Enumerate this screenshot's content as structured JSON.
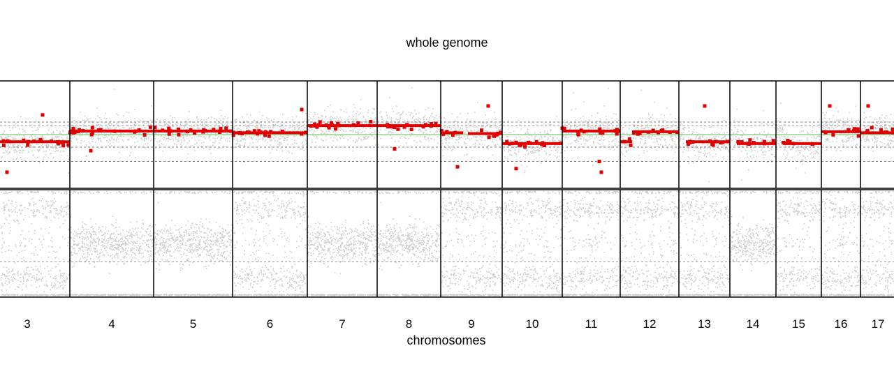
{
  "chart_data": {
    "type": "scatter",
    "title": "whole genome",
    "xlabel": "chromosomes",
    "ylabel": "",
    "chromosomes": [
      {
        "label": "3",
        "start": 0,
        "end": 100
      },
      {
        "label": "4",
        "start": 100,
        "end": 220
      },
      {
        "label": "5",
        "start": 220,
        "end": 333
      },
      {
        "label": "6",
        "start": 333,
        "end": 440
      },
      {
        "label": "7",
        "start": 440,
        "end": 540
      },
      {
        "label": "8",
        "start": 540,
        "end": 631
      },
      {
        "label": "9",
        "start": 631,
        "end": 719
      },
      {
        "label": "10",
        "start": 719,
        "end": 805
      },
      {
        "label": "11",
        "start": 805,
        "end": 888
      },
      {
        "label": "12",
        "start": 888,
        "end": 972
      },
      {
        "label": "13",
        "start": 972,
        "end": 1045
      },
      {
        "label": "14",
        "start": 1045,
        "end": 1111
      },
      {
        "label": "15",
        "start": 1111,
        "end": 1176
      },
      {
        "label": "16",
        "start": 1176,
        "end": 1232
      },
      {
        "label": "17",
        "start": 1232,
        "end": 1280
      }
    ],
    "x_range": [
      0,
      1280
    ],
    "top_panel": {
      "ylim": [
        -1.5,
        1.5
      ],
      "reference_line": 0.0,
      "reference_color": "#8fd88f",
      "dashed_lines": [
        0.35,
        0.25,
        -0.35,
        -0.75
      ],
      "points_color": "#cccccc",
      "segments_color": "#e00000",
      "segments": [
        {
          "x": [
            0,
            100
          ],
          "y": -0.2
        },
        {
          "x": [
            100,
            220
          ],
          "y": 0.1
        },
        {
          "x": [
            220,
            333
          ],
          "y": 0.1
        },
        {
          "x": [
            333,
            440
          ],
          "y": 0.05
        },
        {
          "x": [
            440,
            540
          ],
          "y": 0.25
        },
        {
          "x": [
            540,
            631
          ],
          "y": 0.25
        },
        {
          "x": [
            631,
            663
          ],
          "y": 0.05
        },
        {
          "x": [
            670,
            719
          ],
          "y": 0.03
        },
        {
          "x": [
            719,
            805
          ],
          "y": -0.25
        },
        {
          "x": [
            805,
            888
          ],
          "y": 0.1
        },
        {
          "x": [
            888,
            905
          ],
          "y": -0.2
        },
        {
          "x": [
            905,
            972
          ],
          "y": 0.08
        },
        {
          "x": [
            982,
            1045
          ],
          "y": -0.2
        },
        {
          "x": [
            1055,
            1111
          ],
          "y": -0.25
        },
        {
          "x": [
            1121,
            1176
          ],
          "y": -0.25
        },
        {
          "x": [
            1176,
            1232
          ],
          "y": 0.08
        },
        {
          "x": [
            1232,
            1280
          ],
          "y": 0.05
        }
      ],
      "outliers": [
        {
          "x": 10,
          "y": -1.05
        },
        {
          "x": 61,
          "y": 0.55
        },
        {
          "x": 130,
          "y": -0.45
        },
        {
          "x": 432,
          "y": 0.7
        },
        {
          "x": 565,
          "y": -0.4
        },
        {
          "x": 655,
          "y": -0.9
        },
        {
          "x": 699,
          "y": 0.8
        },
        {
          "x": 739,
          "y": -0.95
        },
        {
          "x": 858,
          "y": -0.75
        },
        {
          "x": 861,
          "y": -1.05
        },
        {
          "x": 1009,
          "y": 0.8
        },
        {
          "x": 1188,
          "y": 0.8
        },
        {
          "x": 1243,
          "y": 0.8
        }
      ]
    },
    "bottom_panel": {
      "ylim": [
        0,
        1
      ],
      "dashed_lines": [
        0.33
      ],
      "points_color": "#cccccc"
    }
  }
}
